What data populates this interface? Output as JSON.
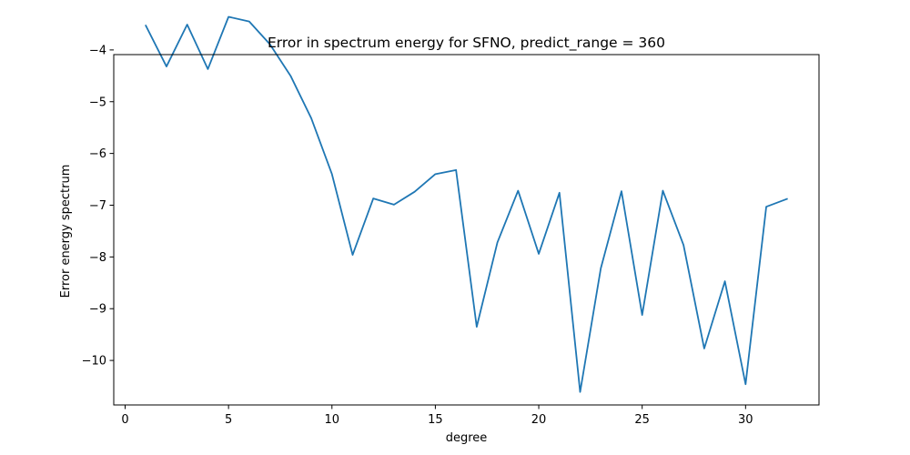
{
  "chart_data": {
    "type": "line",
    "title": "Error in spectrum energy for SFNO, predict_range = 360",
    "xlabel": "degree",
    "ylabel": "Error energy spectrum",
    "xlim": [
      -0.55,
      33.55
    ],
    "ylim": [
      -10.86,
      -4.09
    ],
    "x_ticks": [
      0,
      5,
      10,
      15,
      20,
      25,
      30
    ],
    "x_tick_labels": [
      "0",
      "5",
      "10",
      "15",
      "20",
      "25",
      "30"
    ],
    "y_ticks": [
      -10,
      -9,
      -8,
      -7,
      -6,
      -5,
      -4
    ],
    "y_tick_labels": [
      "−10",
      "−9",
      "−8",
      "−7",
      "−6",
      "−5",
      "−4"
    ],
    "grid": false,
    "series": [
      {
        "color": "#1f77b4",
        "x": [
          1,
          2,
          3,
          4,
          5,
          6,
          7,
          8,
          9,
          10,
          11,
          12,
          13,
          14,
          15,
          16,
          17,
          18,
          19,
          20,
          21,
          22,
          23,
          24,
          25,
          26,
          27,
          28,
          29,
          30,
          31,
          32
        ],
        "y": [
          -3.53,
          -4.32,
          -3.51,
          -4.37,
          -3.36,
          -3.45,
          -3.89,
          -4.5,
          -5.32,
          -6.4,
          -7.96,
          -6.87,
          -6.99,
          -6.74,
          -6.4,
          -6.32,
          -9.35,
          -7.72,
          -6.72,
          -7.94,
          -6.76,
          -10.61,
          -8.22,
          -6.73,
          -9.12,
          -6.72,
          -7.77,
          -9.77,
          -8.47,
          -10.46,
          -7.03,
          -6.88
        ]
      }
    ]
  }
}
